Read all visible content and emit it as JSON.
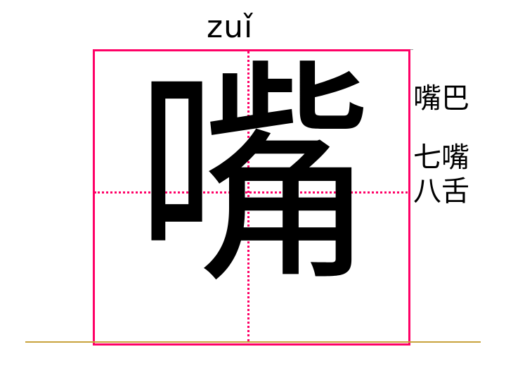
{
  "pinyin": "zuǐ",
  "character": "嘴",
  "words": [
    "嘴巴",
    "七嘴",
    "八舌"
  ],
  "colors": {
    "grid": "#ff0066",
    "baseline": "#c8a23c",
    "text": "#000000"
  }
}
